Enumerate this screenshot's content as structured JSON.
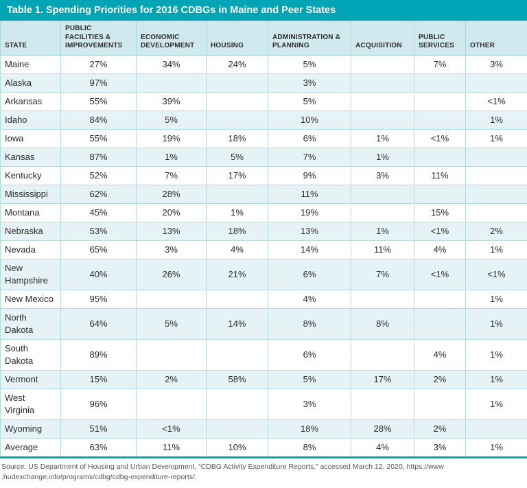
{
  "chart_data": {
    "type": "table",
    "title": "Table 1. Spending Priorities for 2016 CDBGs in Maine and Peer States",
    "columns": [
      "STATE",
      "PUBLIC FACILITIES & IMPROVEMENTS",
      "ECONOMIC DEVELOPMENT",
      "HOUSING",
      "ADMINISTRATION & PLANNING",
      "ACQUISITION",
      "PUBLIC SERVICES",
      "OTHER"
    ],
    "rows": [
      {
        "state": "Maine",
        "values": [
          "27%",
          "34%",
          "24%",
          "5%",
          "",
          "7%",
          "3%"
        ]
      },
      {
        "state": "Alaska",
        "values": [
          "97%",
          "",
          "",
          "3%",
          "",
          "",
          ""
        ]
      },
      {
        "state": "Arkansas",
        "values": [
          "55%",
          "39%",
          "",
          "5%",
          "",
          "",
          "<1%"
        ]
      },
      {
        "state": "Idaho",
        "values": [
          "84%",
          "5%",
          "",
          "10%",
          "",
          "",
          "1%"
        ]
      },
      {
        "state": "Iowa",
        "values": [
          "55%",
          "19%",
          "18%",
          "6%",
          "1%",
          "<1%",
          "1%"
        ]
      },
      {
        "state": "Kansas",
        "values": [
          "87%",
          "1%",
          "5%",
          "7%",
          "1%",
          "",
          ""
        ]
      },
      {
        "state": "Kentucky",
        "values": [
          "52%",
          "7%",
          "17%",
          "9%",
          "3%",
          "11%",
          ""
        ]
      },
      {
        "state": "Mississippi",
        "values": [
          "62%",
          "28%",
          "",
          "11%",
          "",
          "",
          ""
        ]
      },
      {
        "state": "Montana",
        "values": [
          "45%",
          "20%",
          "1%",
          "19%",
          "",
          "15%",
          ""
        ]
      },
      {
        "state": "Nebraska",
        "values": [
          "53%",
          "13%",
          "18%",
          "13%",
          "1%",
          "<1%",
          "2%"
        ]
      },
      {
        "state": "Nevada",
        "values": [
          "65%",
          "3%",
          "4%",
          "14%",
          "11%",
          "4%",
          "1%"
        ]
      },
      {
        "state": "New Hampshire",
        "values": [
          "40%",
          "26%",
          "21%",
          "6%",
          "7%",
          "<1%",
          "<1%"
        ]
      },
      {
        "state": "New Mexico",
        "values": [
          "95%",
          "",
          "",
          "4%",
          "",
          "",
          "1%"
        ]
      },
      {
        "state": "North Dakota",
        "values": [
          "64%",
          "5%",
          "14%",
          "8%",
          "8%",
          "",
          "1%"
        ]
      },
      {
        "state": "South Dakota",
        "values": [
          "89%",
          "",
          "",
          "6%",
          "",
          "4%",
          "1%"
        ]
      },
      {
        "state": "Vermont",
        "values": [
          "15%",
          "2%",
          "58%",
          "5%",
          "17%",
          "2%",
          "1%"
        ]
      },
      {
        "state": "West Virginia",
        "values": [
          "96%",
          "",
          "",
          "3%",
          "",
          "",
          "1%"
        ]
      },
      {
        "state": "Wyoming",
        "values": [
          "51%",
          "<1%",
          "",
          "18%",
          "28%",
          "2%",
          ""
        ]
      },
      {
        "state": "Average",
        "values": [
          "63%",
          "11%",
          "10%",
          "8%",
          "4%",
          "3%",
          "1%"
        ]
      }
    ]
  },
  "source": {
    "line1": "Source: US Department of Housing and Urban Development, “CDBG Activity Expenditure Reports,” accessed March 12, 2020, https://www",
    "line2": ".hudexchange.info/programs/cdbg/cdbg-expenditure-reports/."
  }
}
